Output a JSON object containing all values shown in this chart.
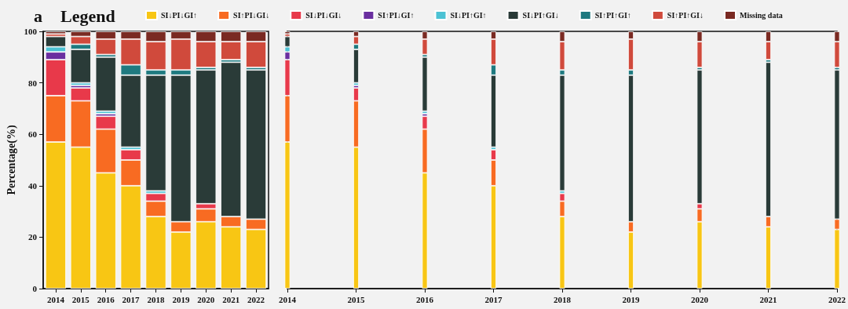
{
  "chart_data": [
    {
      "type": "bar",
      "title": "a",
      "legend_title": "Legend",
      "ylabel": "Percentage(%)",
      "stacked": true,
      "categories": [
        "2014",
        "2015",
        "2016",
        "2017",
        "2018",
        "2019",
        "2020",
        "2021",
        "2022"
      ],
      "ylim": [
        0,
        100
      ],
      "yticks": [
        0,
        20,
        40,
        60,
        80,
        100
      ],
      "legend": "top",
      "grid": false,
      "series": [
        {
          "name": "SI↓PI↓GI↑",
          "color": "#f8c614",
          "values": [
            57,
            55,
            45,
            40,
            28,
            22,
            26,
            24,
            23
          ]
        },
        {
          "name": "SI↑PI↓GI↓",
          "color": "#f86b22",
          "values": [
            18,
            18,
            17,
            10,
            6,
            4,
            5,
            4,
            4
          ]
        },
        {
          "name": "SI↓PI↓GI↓",
          "color": "#e8394a",
          "values": [
            14,
            5,
            5,
            4,
            3,
            0,
            2,
            0,
            0
          ]
        },
        {
          "name": "SI↑PI↓GI↑",
          "color": "#6a2fa0",
          "values": [
            3,
            1,
            1,
            0,
            0,
            0,
            0,
            0,
            0
          ]
        },
        {
          "name": "SI↓PI↑GI↑",
          "color": "#4cc2d4",
          "values": [
            2,
            1,
            1,
            1,
            1,
            0,
            0,
            0,
            0
          ]
        },
        {
          "name": "SI↓PI↑GI↓",
          "color": "#2a3b38",
          "values": [
            4,
            13,
            21,
            28,
            45,
            57,
            52,
            60,
            58
          ]
        },
        {
          "name": "SI↑PI↑GI↑",
          "color": "#1f7a80",
          "values": [
            0,
            2,
            1,
            4,
            2,
            2,
            1,
            1,
            1
          ]
        },
        {
          "name": "SI↑PI↑GI↓",
          "color": "#d04a3c",
          "values": [
            1,
            3,
            6,
            10,
            11,
            12,
            10,
            7,
            10
          ]
        },
        {
          "name": "Missing data",
          "color": "#7a2a22",
          "values": [
            1,
            2,
            3,
            3,
            4,
            3,
            4,
            4,
            4
          ]
        }
      ]
    },
    {
      "type": "bar",
      "stacked": true,
      "tick_labels": "x",
      "categories": [
        "2014",
        "2015",
        "2016",
        "2017",
        "2018",
        "2019",
        "2020",
        "2021",
        "2022"
      ],
      "ylim": [
        0,
        100
      ],
      "legend": false,
      "grid": false,
      "series": [
        {
          "color": "#f8c614",
          "values": [
            57,
            55,
            45,
            40,
            28,
            22,
            26,
            24,
            23
          ]
        },
        {
          "color": "#f86b22",
          "values": [
            18,
            18,
            17,
            10,
            6,
            4,
            5,
            4,
            4
          ]
        },
        {
          "color": "#e8394a",
          "values": [
            14,
            5,
            5,
            4,
            3,
            0,
            2,
            0,
            0
          ]
        },
        {
          "color": "#6a2fa0",
          "values": [
            3,
            1,
            1,
            0,
            0,
            0,
            0,
            0,
            0
          ]
        },
        {
          "color": "#4cc2d4",
          "values": [
            2,
            1,
            1,
            1,
            1,
            0,
            0,
            0,
            0
          ]
        },
        {
          "color": "#2a3b38",
          "values": [
            4,
            13,
            21,
            28,
            45,
            57,
            52,
            60,
            58
          ]
        },
        {
          "color": "#1f7a80",
          "values": [
            0,
            2,
            1,
            4,
            2,
            2,
            1,
            1,
            1
          ]
        },
        {
          "color": "#d04a3c",
          "values": [
            1,
            3,
            6,
            10,
            11,
            12,
            10,
            7,
            10
          ]
        },
        {
          "color": "#7a2a22",
          "values": [
            1,
            2,
            3,
            3,
            4,
            3,
            4,
            4,
            4
          ]
        }
      ]
    }
  ]
}
